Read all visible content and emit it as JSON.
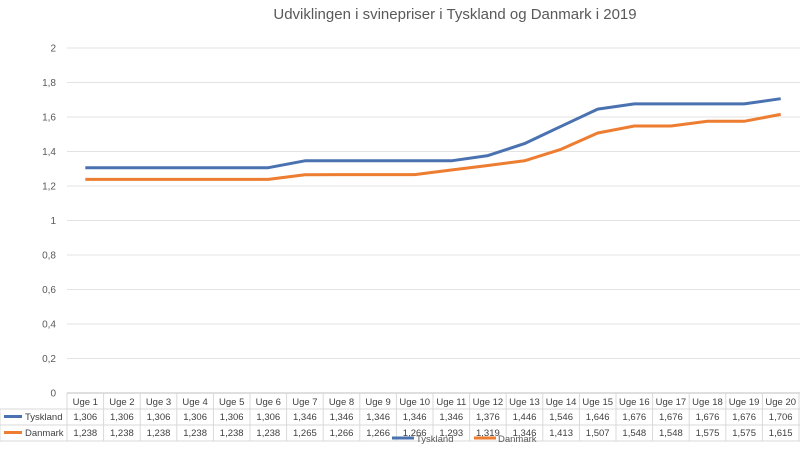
{
  "chart_data": {
    "type": "line",
    "title": "Udviklingen i svinepriser i Tyskland og Danmark i 2019",
    "categories": [
      "Uge 1",
      "Uge 2",
      "Uge 3",
      "Uge 4",
      "Uge 5",
      "Uge 6",
      "Uge 7",
      "Uge 8",
      "Uge 9",
      "Uge 10",
      "Uge 11",
      "Uge 12",
      "Uge 13",
      "Uge 14",
      "Uge 15",
      "Uge 16",
      "Uge 17",
      "Uge 18",
      "Uge 19",
      "Uge 20"
    ],
    "ylim": [
      0,
      2
    ],
    "yticks": [
      "0",
      "0,2",
      "0,4",
      "0,6",
      "0,8",
      "1",
      "1,2",
      "1,4",
      "1,6",
      "1,8",
      "2"
    ],
    "grid": true,
    "legend_position": "bottom",
    "series": [
      {
        "name": "Tyskland",
        "color": "#4a72b0",
        "values": [
          1.306,
          1.306,
          1.306,
          1.306,
          1.306,
          1.306,
          1.346,
          1.346,
          1.346,
          1.346,
          1.346,
          1.376,
          1.446,
          1.546,
          1.646,
          1.676,
          1.676,
          1.676,
          1.676,
          1.706
        ],
        "labels": [
          "1,306",
          "1,306",
          "1,306",
          "1,306",
          "1,306",
          "1,306",
          "1,346",
          "1,346",
          "1,346",
          "1,346",
          "1,346",
          "1,376",
          "1,446",
          "1,546",
          "1,646",
          "1,676",
          "1,676",
          "1,676",
          "1,676",
          "1,706"
        ]
      },
      {
        "name": "Danmark",
        "color": "#ed7d31",
        "values": [
          1.238,
          1.238,
          1.238,
          1.238,
          1.238,
          1.238,
          1.265,
          1.266,
          1.266,
          1.266,
          1.293,
          1.319,
          1.346,
          1.413,
          1.507,
          1.548,
          1.548,
          1.575,
          1.575,
          1.615
        ],
        "labels": [
          "1,238",
          "1,238",
          "1,238",
          "1,238",
          "1,238",
          "1,238",
          "1,265",
          "1,266",
          "1,266",
          "1,266",
          "1,293",
          "1,319",
          "1,346",
          "1,413",
          "1,507",
          "1,548",
          "1,548",
          "1,575",
          "1,575",
          "1,615"
        ]
      }
    ]
  }
}
